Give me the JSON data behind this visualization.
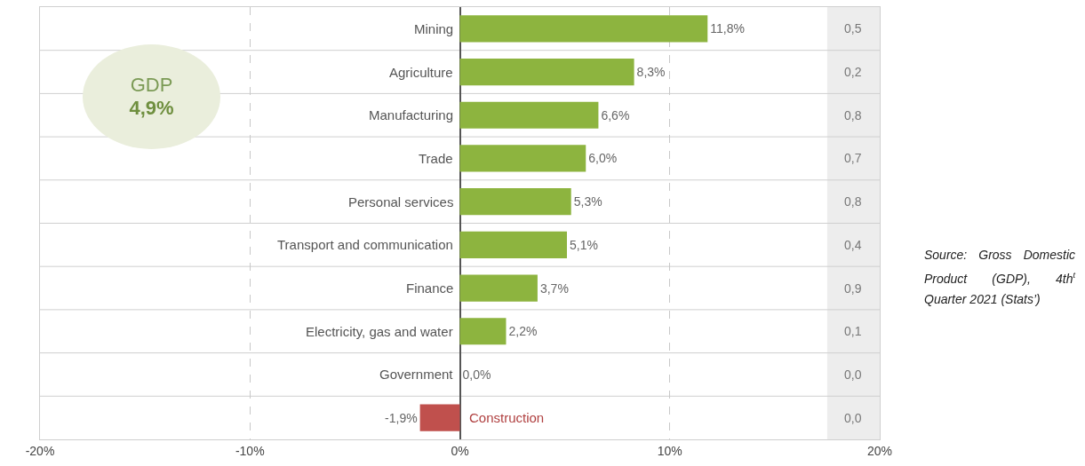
{
  "chart_data": {
    "type": "bar",
    "orientation": "horizontal",
    "categories": [
      "Mining",
      "Agriculture",
      "Manufacturing",
      "Trade",
      "Personal services",
      "Transport and communication",
      "Finance",
      "Electricity, gas and water",
      "Government",
      "Construction"
    ],
    "values": [
      11.8,
      8.3,
      6.6,
      6.0,
      5.3,
      5.1,
      3.7,
      2.2,
      0.0,
      -1.9
    ],
    "value_labels": [
      "11,8%",
      "8,3%",
      "6,6%",
      "6,0%",
      "5,3%",
      "5,1%",
      "3,7%",
      "2,2%",
      "0,0%",
      "-1,9%"
    ],
    "colors": [
      "#8db43f",
      "#8db43f",
      "#8db43f",
      "#8db43f",
      "#8db43f",
      "#8db43f",
      "#8db43f",
      "#8db43f",
      "#8db43f",
      "#c0504d"
    ],
    "xlim": [
      -20,
      20
    ],
    "xticks": [
      {
        "value": -20,
        "label": "-20%"
      },
      {
        "value": -10,
        "label": "-10%"
      },
      {
        "value": 0,
        "label": "0%"
      },
      {
        "value": 10,
        "label": "10%"
      },
      {
        "value": 20,
        "label": "20%"
      }
    ],
    "grid": "x",
    "bands": [
      {
        "axis": "x",
        "from": 17.5,
        "to": 20,
        "color": "#ededed"
      }
    ],
    "annotations": [
      "GDP",
      "4,9%",
      "0,5",
      "0,2",
      "0,8",
      "0,7",
      "0,8",
      "0,4",
      "0,9",
      "0,1",
      "0,0",
      "0,0",
      "Source: Gross Domestic Product (GDP), 4th$^{t}$ Quarter 2021 (Stats’)"
    ]
  }
}
